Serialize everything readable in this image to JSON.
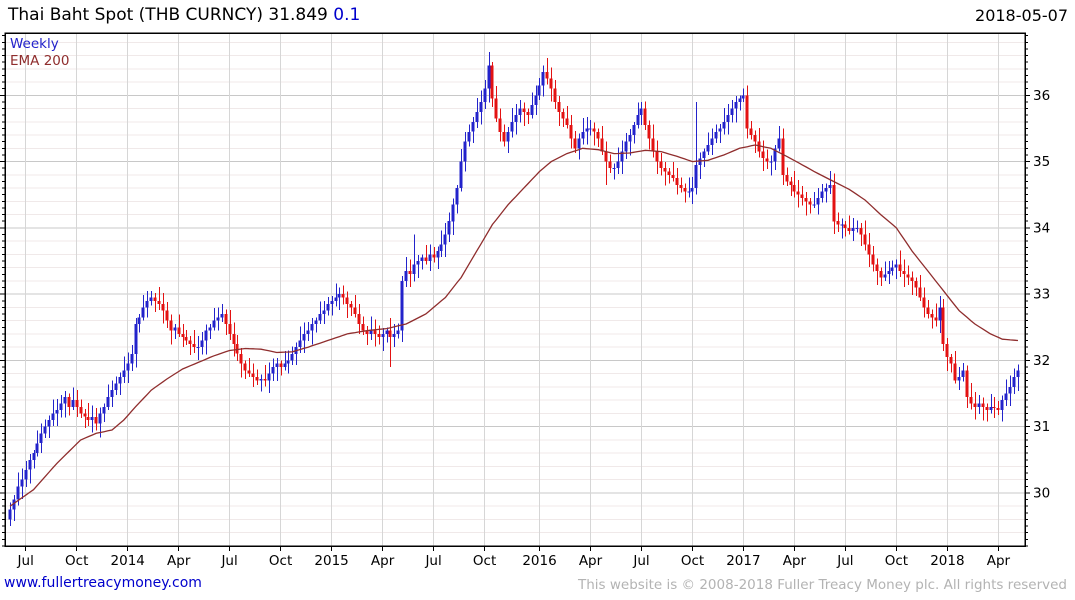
{
  "header": {
    "title": "Thai Baht Spot (THB CURNCY) 31.849 ",
    "change": "0.1",
    "date": "2018-05-07"
  },
  "legend": {
    "timeframe": "Weekly",
    "overlay": "EMA 200"
  },
  "footer": {
    "website": "www.fullertreacymoney.com",
    "copyright": "This website is © 2008-2018 Fuller Treacy Money plc. All rights reserved"
  },
  "colors": {
    "up": "#2323cb",
    "down": "#e31212",
    "ema": "#8f2d2d",
    "grid_minor": "#f0e9e9",
    "grid_major": "#c8c8c8",
    "grid_vertical": "#d6d6d6",
    "border": "#000000",
    "axis_text": "#000000"
  },
  "chart_data": {
    "type": "candlestick",
    "title": "Thai Baht Spot (THB CURNCY)",
    "frequency": "Weekly",
    "overlay": "EMA 200",
    "last_price": 31.849,
    "change": 0.1,
    "date": "2018-05-07",
    "ylim": [
      29.2,
      36.94
    ],
    "y_major_ticks": [
      30,
      31,
      32,
      33,
      34,
      35,
      36
    ],
    "y_minor_step": 0.2,
    "x_ticks": [
      {
        "label": "Jul",
        "week": 4
      },
      {
        "label": "Oct",
        "week": 17
      },
      {
        "label": "2014",
        "week": 30
      },
      {
        "label": "Apr",
        "week": 43
      },
      {
        "label": "Jul",
        "week": 56
      },
      {
        "label": "Oct",
        "week": 69
      },
      {
        "label": "2015",
        "week": 82
      },
      {
        "label": "Apr",
        "week": 95
      },
      {
        "label": "Jul",
        "week": 108
      },
      {
        "label": "Oct",
        "week": 121
      },
      {
        "label": "2016",
        "week": 135
      },
      {
        "label": "Apr",
        "week": 148
      },
      {
        "label": "Jul",
        "week": 161
      },
      {
        "label": "Oct",
        "week": 174
      },
      {
        "label": "2017",
        "week": 187
      },
      {
        "label": "Apr",
        "week": 200
      },
      {
        "label": "Jul",
        "week": 213
      },
      {
        "label": "Oct",
        "week": 226
      },
      {
        "label": "2018",
        "week": 239
      },
      {
        "label": "Apr",
        "week": 252
      }
    ],
    "weekly_closes": [
      29.75,
      29.9,
      30.1,
      30.2,
      30.35,
      30.5,
      30.6,
      30.75,
      30.9,
      31.0,
      31.1,
      31.2,
      31.25,
      31.35,
      31.45,
      31.3,
      31.4,
      31.3,
      31.2,
      31.15,
      31.1,
      31.15,
      31.05,
      31.2,
      31.3,
      31.45,
      31.55,
      31.65,
      31.75,
      31.85,
      31.95,
      32.1,
      32.55,
      32.65,
      32.8,
      32.9,
      32.95,
      32.9,
      32.85,
      32.75,
      32.6,
      32.45,
      32.5,
      32.4,
      32.35,
      32.3,
      32.25,
      32.2,
      32.2,
      32.3,
      32.45,
      32.5,
      32.6,
      32.65,
      32.7,
      32.55,
      32.4,
      32.25,
      32.1,
      31.95,
      31.85,
      31.8,
      31.75,
      31.7,
      31.72,
      31.7,
      31.8,
      31.9,
      31.95,
      31.9,
      31.95,
      32.0,
      32.1,
      32.2,
      32.3,
      32.4,
      32.45,
      32.55,
      32.6,
      32.7,
      32.75,
      32.85,
      32.9,
      32.95,
      33.0,
      32.95,
      32.85,
      32.8,
      32.7,
      32.55,
      32.45,
      32.4,
      32.45,
      32.4,
      32.35,
      32.4,
      32.45,
      32.35,
      32.4,
      32.45,
      33.2,
      33.35,
      33.3,
      33.45,
      33.5,
      33.55,
      33.5,
      33.6,
      33.55,
      33.65,
      33.75,
      33.9,
      34.1,
      34.35,
      34.6,
      35.0,
      35.3,
      35.45,
      35.6,
      35.75,
      35.9,
      36.1,
      36.45,
      35.95,
      35.65,
      35.45,
      35.3,
      35.45,
      35.6,
      35.7,
      35.8,
      35.75,
      35.7,
      35.85,
      36.0,
      36.15,
      36.35,
      36.25,
      36.1,
      35.9,
      35.75,
      35.65,
      35.55,
      35.35,
      35.2,
      35.35,
      35.45,
      35.5,
      35.5,
      35.45,
      35.35,
      35.15,
      35.0,
      34.9,
      34.9,
      35.0,
      35.15,
      35.3,
      35.4,
      35.55,
      35.7,
      35.8,
      35.55,
      35.35,
      35.15,
      35.0,
      34.9,
      34.85,
      34.8,
      34.75,
      34.65,
      34.6,
      34.55,
      34.55,
      34.6,
      34.95,
      35.05,
      35.15,
      35.25,
      35.35,
      35.45,
      35.5,
      35.6,
      35.7,
      35.8,
      35.9,
      35.95,
      36.0,
      35.5,
      35.4,
      35.3,
      35.15,
      35.05,
      35.0,
      35.0,
      35.2,
      35.35,
      34.8,
      34.7,
      34.65,
      34.55,
      34.5,
      34.45,
      34.4,
      34.35,
      34.35,
      34.45,
      34.55,
      34.6,
      34.65,
      34.1,
      34.05,
      34.05,
      34.0,
      33.95,
      34.0,
      34.0,
      33.9,
      33.75,
      33.6,
      33.45,
      33.35,
      33.25,
      33.3,
      33.35,
      33.4,
      33.45,
      33.35,
      33.3,
      33.25,
      33.2,
      33.1,
      32.95,
      32.8,
      32.7,
      32.65,
      32.6,
      32.8,
      32.25,
      32.05,
      31.95,
      31.7,
      31.75,
      31.85,
      31.45,
      31.35,
      31.3,
      31.35,
      31.3,
      31.25,
      31.3,
      31.28,
      31.25,
      31.4,
      31.5,
      31.6,
      31.75,
      31.85
    ],
    "first_open": 29.6,
    "wick_extremes": {
      "0": {
        "l": 29.5
      },
      "36": {
        "h": 33.05
      },
      "54": {
        "h": 32.85
      },
      "62": {
        "l": 31.6
      },
      "84": {
        "h": 33.1
      },
      "97": {
        "l": 31.9
      },
      "103": {
        "h": 33.9
      },
      "122": {
        "h": 36.65
      },
      "136": {
        "h": 36.45
      },
      "152": {
        "l": 34.65
      },
      "161": {
        "h": 35.9
      },
      "175": {
        "h": 35.9,
        "l": 34.5
      },
      "187": {
        "h": 36.1
      },
      "249": {
        "l": 31.08
      }
    },
    "ema200": [
      [
        0,
        29.8
      ],
      [
        6,
        30.05
      ],
      [
        12,
        30.45
      ],
      [
        18,
        30.8
      ],
      [
        22,
        30.9
      ],
      [
        26,
        30.95
      ],
      [
        29,
        31.1
      ],
      [
        32,
        31.3
      ],
      [
        36,
        31.55
      ],
      [
        40,
        31.72
      ],
      [
        44,
        31.87
      ],
      [
        48,
        31.97
      ],
      [
        52,
        32.07
      ],
      [
        56,
        32.15
      ],
      [
        60,
        32.18
      ],
      [
        64,
        32.17
      ],
      [
        68,
        32.12
      ],
      [
        72,
        32.13
      ],
      [
        76,
        32.2
      ],
      [
        81,
        32.3
      ],
      [
        86,
        32.4
      ],
      [
        91,
        32.45
      ],
      [
        96,
        32.48
      ],
      [
        101,
        32.55
      ],
      [
        106,
        32.7
      ],
      [
        111,
        32.95
      ],
      [
        115,
        33.25
      ],
      [
        119,
        33.65
      ],
      [
        123,
        34.05
      ],
      [
        127,
        34.35
      ],
      [
        131,
        34.6
      ],
      [
        135,
        34.85
      ],
      [
        138,
        35.0
      ],
      [
        142,
        35.12
      ],
      [
        146,
        35.2
      ],
      [
        150,
        35.18
      ],
      [
        154,
        35.12
      ],
      [
        158,
        35.13
      ],
      [
        162,
        35.17
      ],
      [
        166,
        35.15
      ],
      [
        170,
        35.08
      ],
      [
        174,
        35.0
      ],
      [
        178,
        35.02
      ],
      [
        182,
        35.1
      ],
      [
        186,
        35.2
      ],
      [
        190,
        35.25
      ],
      [
        194,
        35.2
      ],
      [
        198,
        35.08
      ],
      [
        202,
        34.95
      ],
      [
        206,
        34.82
      ],
      [
        210,
        34.7
      ],
      [
        214,
        34.58
      ],
      [
        218,
        34.42
      ],
      [
        222,
        34.2
      ],
      [
        226,
        34.0
      ],
      [
        230,
        33.65
      ],
      [
        234,
        33.35
      ],
      [
        238,
        33.05
      ],
      [
        242,
        32.75
      ],
      [
        246,
        32.55
      ],
      [
        250,
        32.4
      ],
      [
        253,
        32.32
      ],
      [
        257,
        32.3
      ]
    ]
  }
}
